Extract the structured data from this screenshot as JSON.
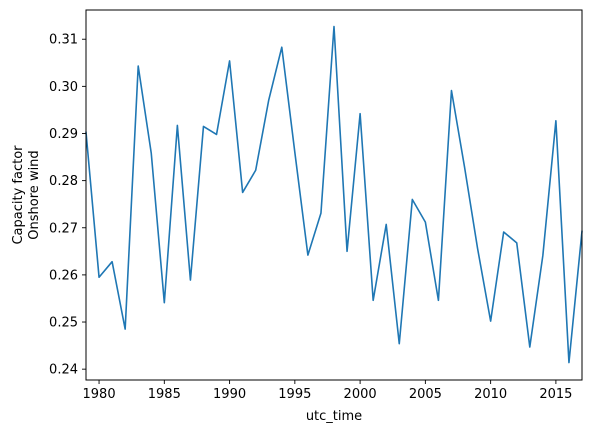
{
  "chart_data": {
    "type": "line",
    "title": "",
    "xlabel": "utc_time",
    "ylabel_lines": [
      "Capacity factor",
      "Onshore wind"
    ],
    "xlim": [
      1979,
      2017
    ],
    "ylim": [
      0.2377,
      0.3162
    ],
    "xticks": [
      1980,
      1985,
      1990,
      1995,
      2000,
      2005,
      2010,
      2015
    ],
    "xtick_labels": [
      "1980",
      "1985",
      "1990",
      "1995",
      "2000",
      "2005",
      "2010",
      "2015"
    ],
    "yticks": [
      0.24,
      0.25,
      0.26,
      0.27,
      0.28,
      0.29,
      0.3,
      0.31
    ],
    "ytick_labels": [
      "0.24",
      "0.25",
      "0.26",
      "0.27",
      "0.28",
      "0.29",
      "0.30",
      "0.31"
    ],
    "grid": false,
    "line_color": "#1f77b4",
    "series": [
      {
        "x": [
          1979,
          1980,
          1981,
          1982,
          1983,
          1984,
          1985,
          1986,
          1987,
          1988,
          1989,
          1990,
          1991,
          1992,
          1993,
          1994,
          1995,
          1996,
          1997,
          1998,
          1999,
          2000,
          2001,
          2002,
          2003,
          2004,
          2005,
          2006,
          2007,
          2008,
          2009,
          2010,
          2011,
          2012,
          2013,
          2014,
          2015,
          2016,
          2017
        ],
        "values": [
          0.2903,
          0.2595,
          0.2628,
          0.2485,
          0.3043,
          0.2858,
          0.2541,
          0.2917,
          0.2589,
          0.2915,
          0.2898,
          0.3054,
          0.2775,
          0.2822,
          0.2971,
          0.3083,
          0.286,
          0.2642,
          0.2731,
          0.3127,
          0.265,
          0.2942,
          0.2546,
          0.2707,
          0.2454,
          0.276,
          0.2712,
          0.2546,
          0.2991,
          0.2829,
          0.2656,
          0.2502,
          0.2691,
          0.2668,
          0.2447,
          0.2641,
          0.2927,
          0.2414,
          0.2693
        ]
      }
    ]
  }
}
